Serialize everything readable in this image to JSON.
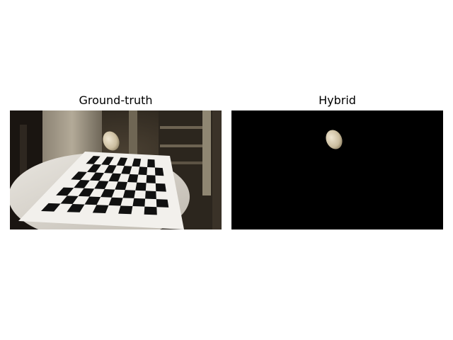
{
  "panels": [
    {
      "title": "Ground-truth"
    },
    {
      "title": "Hybrid"
    }
  ],
  "colors": {
    "background": "#ffffff",
    "mask_background": "#000000",
    "board_dark": "#111111",
    "board_light": "#f2f0ec",
    "scene_shadow": "#1c1712",
    "object": "#d4c6aa"
  },
  "scene": {
    "board_rows": 7,
    "board_cols": 10
  }
}
